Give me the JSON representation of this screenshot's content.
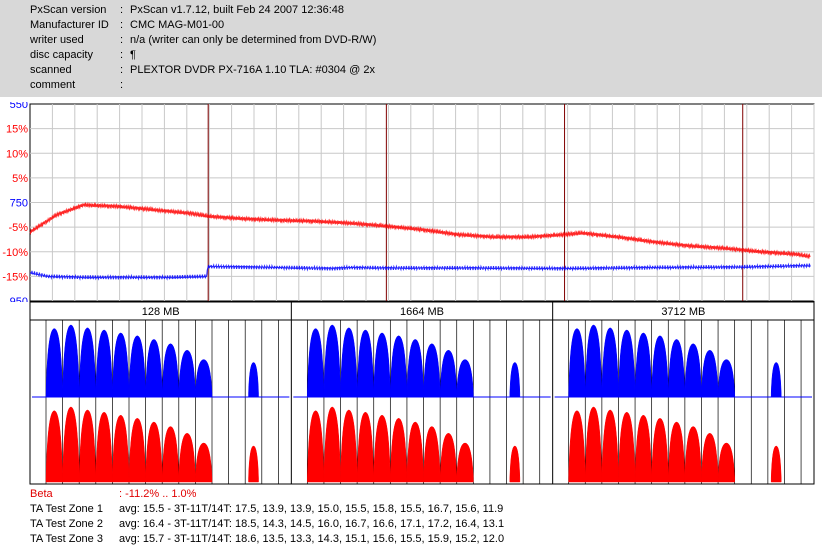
{
  "header": {
    "rows": [
      {
        "key": "PxScan version",
        "value": "PxScan v1.7.12, built Feb 24 2007 12:36:48"
      },
      {
        "key": "Manufacturer ID",
        "value": "CMC MAG-M01-00"
      },
      {
        "key": "writer used",
        "value": "n/a (writer can only be determined from DVD-R/W)"
      },
      {
        "key": "disc capacity",
        "value": "¶"
      },
      {
        "key": "scanned",
        "value": "PLEXTOR DVDR PX-716A 1.10 TLA: #0304 @ 2x"
      },
      {
        "key": "comment",
        "value": ""
      }
    ],
    "separator": ":"
  },
  "chart_data": [
    {
      "type": "line",
      "name": "main-scan",
      "x_range": [
        0,
        4400
      ],
      "x_unit": "MB",
      "left_axis_ticks": [
        {
          "label": "550",
          "color": "#0000ff"
        },
        {
          "label": "15%",
          "color": "#ff0000"
        },
        {
          "label": "10%",
          "color": "#ff0000"
        },
        {
          "label": "5%",
          "color": "#ff0000"
        },
        {
          "label": "750",
          "color": "#0000ff"
        },
        {
          "label": "-5%",
          "color": "#ff0000"
        },
        {
          "label": "-10%",
          "color": "#ff0000"
        },
        {
          "label": "-15%",
          "color": "#ff0000"
        },
        {
          "label": "950",
          "color": "#0000ff"
        }
      ],
      "beta_scale": {
        "min": -20,
        "max": 20,
        "unit": "%"
      },
      "jitter_scale": {
        "min": 550,
        "max": 950
      },
      "zone_markers_mb": [
        1000,
        2000,
        3000,
        4000
      ],
      "series": [
        {
          "color": "#ff0000",
          "points": [
            [
              0,
              -6
            ],
            [
              150,
              -2.5
            ],
            [
              300,
              -0.5
            ],
            [
              500,
              -0.8
            ],
            [
              700,
              -1.5
            ],
            [
              900,
              -2.2
            ],
            [
              1000,
              -2.8
            ],
            [
              1200,
              -3.3
            ],
            [
              1400,
              -3.6
            ],
            [
              1600,
              -3.8
            ],
            [
              1800,
              -4.2
            ],
            [
              2000,
              -4.8
            ],
            [
              2200,
              -5.5
            ],
            [
              2400,
              -6.5
            ],
            [
              2600,
              -7.0
            ],
            [
              2800,
              -7.0
            ],
            [
              3000,
              -6.5
            ],
            [
              3100,
              -6.2
            ],
            [
              3300,
              -7.0
            ],
            [
              3500,
              -8.0
            ],
            [
              3700,
              -8.8
            ],
            [
              3900,
              -9.3
            ],
            [
              4100,
              -10.0
            ],
            [
              4300,
              -10.5
            ],
            [
              4380,
              -11.0
            ]
          ]
        },
        {
          "color": "#0000ff",
          "points": [
            [
              0,
              892
            ],
            [
              100,
              900
            ],
            [
              300,
              902
            ],
            [
              600,
              902
            ],
            [
              800,
              902
            ],
            [
              990,
              900
            ],
            [
              1000,
              880
            ],
            [
              1400,
              882
            ],
            [
              1700,
              884
            ],
            [
              1800,
              882
            ],
            [
              2000,
              883
            ],
            [
              2500,
              883
            ],
            [
              3000,
              884
            ],
            [
              3500,
              882
            ],
            [
              4000,
              881
            ],
            [
              4380,
              878
            ]
          ]
        }
      ]
    },
    {
      "type": "bar",
      "name": "ta-test-zones",
      "zones": [
        {
          "label": "128 MB",
          "avg": 15.5
        },
        {
          "label": "1664 MB",
          "avg": 16.4
        },
        {
          "label": "3712 MB",
          "avg": 15.7
        }
      ],
      "top_channel_color": "#0000ff",
      "bottom_channel_color": "#ff0000",
      "lobe_heights": [
        0.95,
        1.0,
        0.96,
        0.93,
        0.89,
        0.85,
        0.8,
        0.74,
        0.65,
        0.52,
        0.0,
        0.48
      ]
    }
  ],
  "summary": {
    "beta": {
      "label": "Beta",
      "value": ": -11.2% .. 1.0%"
    },
    "zones": [
      {
        "label": "TA Test Zone 1",
        "value": "avg: 15.5 - 3T-11T/14T: 17.5, 13.9, 13.9, 15.0, 15.5, 15.8, 15.5, 16.7, 15.6, 11.9"
      },
      {
        "label": "TA Test Zone 2",
        "value": "avg: 16.4 - 3T-11T/14T: 18.5, 14.3, 14.5, 16.0, 16.7, 16.6, 17.1, 17.2, 16.4, 13.1"
      },
      {
        "label": "TA Test Zone 3",
        "value": "avg: 15.7 - 3T-11T/14T: 18.6, 13.5, 13.3, 14.3, 15.1, 15.6, 15.5, 15.9, 15.2, 12.0"
      }
    ]
  }
}
